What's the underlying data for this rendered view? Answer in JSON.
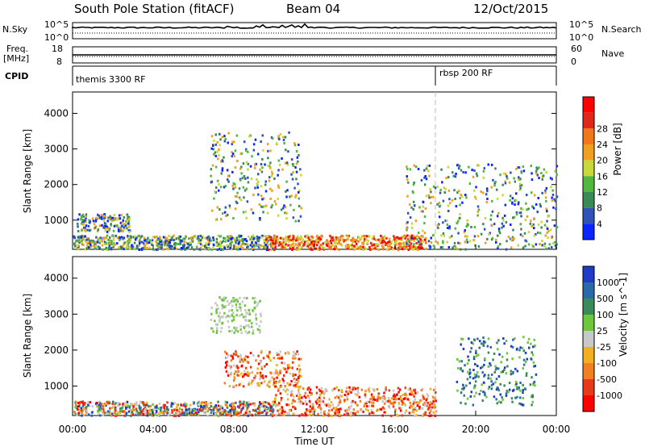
{
  "header": {
    "station": "South Pole Station (fitACF)",
    "beam": "Beam 04",
    "date": "12/Oct/2015"
  },
  "aux_panels": {
    "nsky_label": "N.Sky",
    "nsearch_label": "N.Search",
    "freq_label_1": "Freq.",
    "freq_label_2": "[MHz]",
    "nave_label": "Nave",
    "cpid_label": "CPID",
    "nsky_ticks": [
      "10^5",
      "10^0"
    ],
    "nsearch_ticks": [
      "10^5",
      "10^0"
    ],
    "freq_ticks": [
      "18",
      "8"
    ],
    "nave_ticks": [
      "60",
      "0"
    ],
    "cpid_segments": [
      {
        "label": "themis 3300 RF",
        "start_hour": 0
      },
      {
        "label": "rbsp 200 RF",
        "start_hour": 18
      }
    ]
  },
  "chart_data": [
    {
      "type": "heatmap",
      "panel": "power",
      "ylabel": "Slant Range [km]",
      "ylim": [
        180,
        4600
      ],
      "yticks": [
        "1000",
        "2000",
        "3000",
        "4000"
      ],
      "xlim": [
        0,
        24
      ],
      "xticks": [
        "00:00",
        "04:00",
        "08:00",
        "12:00",
        "16:00",
        "20:00",
        "00:00"
      ],
      "colorbar": {
        "label": "Power [dB]",
        "ticks": [
          "4",
          "8",
          "12",
          "16",
          "20",
          "24",
          "28"
        ],
        "colors": [
          "#0a24ff",
          "#2f52b8",
          "#3a8a58",
          "#50b840",
          "#c8d83a",
          "#f0a020",
          "#f07818",
          "#e02818",
          "#ff0000"
        ]
      },
      "echo_regions": [
        {
          "hour": [
            0.0,
            10.0
          ],
          "range_km": [
            200,
            600
          ],
          "level": "low-moderate"
        },
        {
          "hour": [
            0.2,
            2.8
          ],
          "range_km": [
            700,
            1200
          ],
          "level": "low-moderate"
        },
        {
          "hour": [
            6.8,
            11.3
          ],
          "range_km": [
            1000,
            3500
          ],
          "level": "moderate"
        },
        {
          "hour": [
            9.5,
            17.5
          ],
          "range_km": [
            200,
            600
          ],
          "level": "high"
        },
        {
          "hour": [
            16.5,
            24.0
          ],
          "range_km": [
            200,
            2600
          ],
          "level": "moderate"
        }
      ]
    },
    {
      "type": "heatmap",
      "panel": "velocity",
      "xlabel": "Time UT",
      "ylabel": "Slant Range [km]",
      "ylim": [
        180,
        4600
      ],
      "yticks": [
        "1000",
        "2000",
        "3000",
        "4000"
      ],
      "xlim": [
        0,
        24
      ],
      "xticks": [
        "00:00",
        "04:00",
        "08:00",
        "12:00",
        "16:00",
        "20:00",
        "00:00"
      ],
      "colorbar": {
        "label": "Velocity [m s^-1]",
        "ticks": [
          "1000",
          "500",
          "100",
          "25",
          "-25",
          "-100",
          "-500",
          "-1000"
        ],
        "colors": [
          "#1e3cc8",
          "#2a6aa8",
          "#3a8a5a",
          "#6ec83c",
          "#c8c8c8",
          "#f0b020",
          "#f08020",
          "#e83a18",
          "#ff0000"
        ]
      },
      "echo_regions": [
        {
          "hour": [
            0.0,
            10.0
          ],
          "range_km": [
            200,
            600
          ],
          "velocity": "mixed"
        },
        {
          "hour": [
            6.8,
            9.3
          ],
          "range_km": [
            2500,
            3500
          ],
          "velocity": "near zero"
        },
        {
          "hour": [
            7.5,
            11.3
          ],
          "range_km": [
            1000,
            2000
          ],
          "velocity": "negative"
        },
        {
          "hour": [
            10.0,
            18.0
          ],
          "range_km": [
            200,
            1000
          ],
          "velocity": "negative"
        },
        {
          "hour": [
            19.0,
            23.0
          ],
          "range_km": [
            500,
            2400
          ],
          "velocity": "positive"
        }
      ]
    }
  ]
}
